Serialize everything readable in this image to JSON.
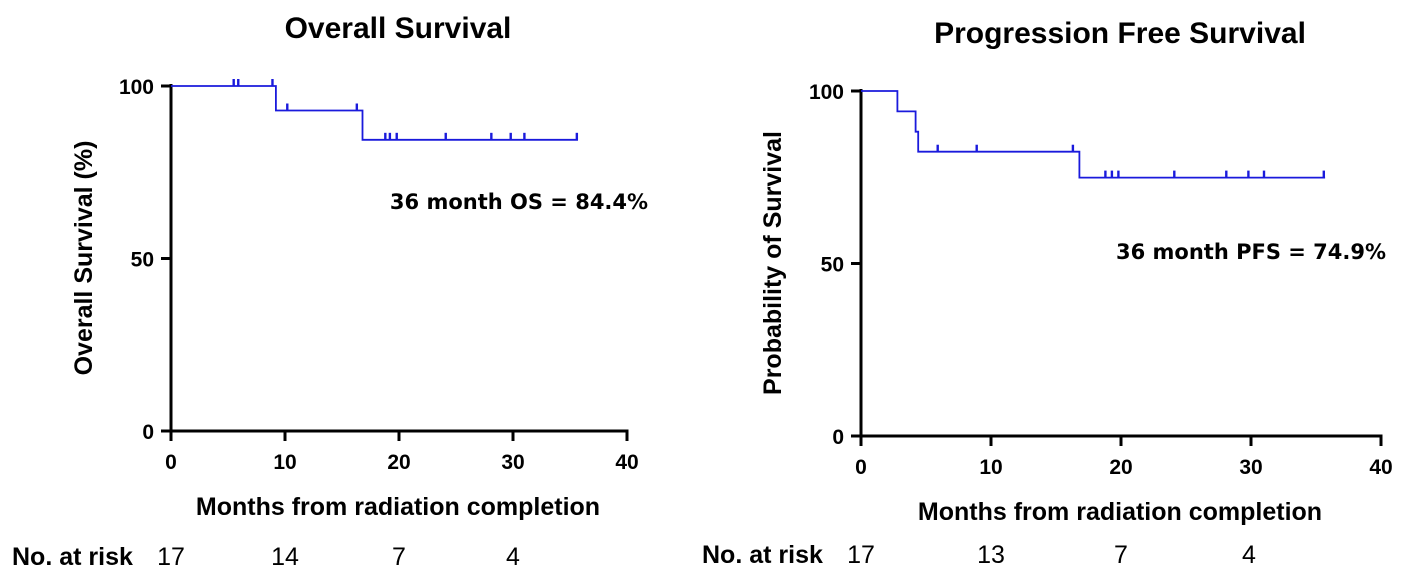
{
  "chart_data": [
    {
      "type": "line",
      "title": "Overall Survival",
      "ylabel": "Overall Survival (%)",
      "xlabel": "Months from radiation completion",
      "xlim": [
        0,
        40
      ],
      "ylim": [
        0,
        100
      ],
      "xticks": [
        "0",
        "10",
        "20",
        "30",
        "40"
      ],
      "yticks": [
        "0",
        "50",
        "100"
      ],
      "series_color": "#1a1adc",
      "steps": [
        [
          0,
          100
        ],
        [
          9.2,
          100
        ],
        [
          9.2,
          92.9
        ],
        [
          16.8,
          92.9
        ],
        [
          16.8,
          84.4
        ],
        [
          35.7,
          84.4
        ]
      ],
      "censor_marks": [
        [
          5.5,
          100
        ],
        [
          5.9,
          100
        ],
        [
          8.9,
          100
        ],
        [
          10.2,
          92.9
        ],
        [
          16.3,
          92.9
        ],
        [
          18.8,
          84.4
        ],
        [
          19.2,
          84.4
        ],
        [
          19.8,
          84.4
        ],
        [
          24.1,
          84.4
        ],
        [
          28.1,
          84.4
        ],
        [
          29.8,
          84.4
        ],
        [
          31.0,
          84.4
        ],
        [
          35.6,
          84.4
        ]
      ],
      "annotation": "36 month OS = 84.4%",
      "risk_table": {
        "label": "No. at risk",
        "x": [
          0,
          10,
          20,
          30
        ],
        "values": [
          "17",
          "14",
          "7",
          "4"
        ]
      }
    },
    {
      "type": "line",
      "title": "Progression Free Survival",
      "ylabel": "Probability of Survival",
      "xlabel": "Months from radiation completion",
      "xlim": [
        0,
        40
      ],
      "ylim": [
        0,
        100
      ],
      "xticks": [
        "0",
        "10",
        "20",
        "30",
        "40"
      ],
      "yticks": [
        "0",
        "50",
        "100"
      ],
      "series_color": "#1a1adc",
      "steps": [
        [
          0,
          100
        ],
        [
          2.8,
          100
        ],
        [
          2.8,
          94.1
        ],
        [
          4.2,
          94.1
        ],
        [
          4.2,
          88.2
        ],
        [
          4.4,
          88.2
        ],
        [
          4.4,
          82.4
        ],
        [
          16.8,
          82.4
        ],
        [
          16.8,
          74.9
        ],
        [
          35.7,
          74.9
        ]
      ],
      "censor_marks": [
        [
          5.9,
          82.4
        ],
        [
          8.9,
          82.4
        ],
        [
          16.3,
          82.4
        ],
        [
          18.8,
          74.9
        ],
        [
          19.3,
          74.9
        ],
        [
          19.8,
          74.9
        ],
        [
          24.1,
          74.9
        ],
        [
          28.1,
          74.9
        ],
        [
          29.8,
          74.9
        ],
        [
          31.0,
          74.9
        ],
        [
          35.6,
          74.9
        ]
      ],
      "annotation": "36 month PFS = 74.9%",
      "risk_table": {
        "label": "No. at risk",
        "x": [
          0,
          10,
          20,
          30
        ],
        "values": [
          "17",
          "13",
          "7",
          "4"
        ]
      }
    }
  ]
}
